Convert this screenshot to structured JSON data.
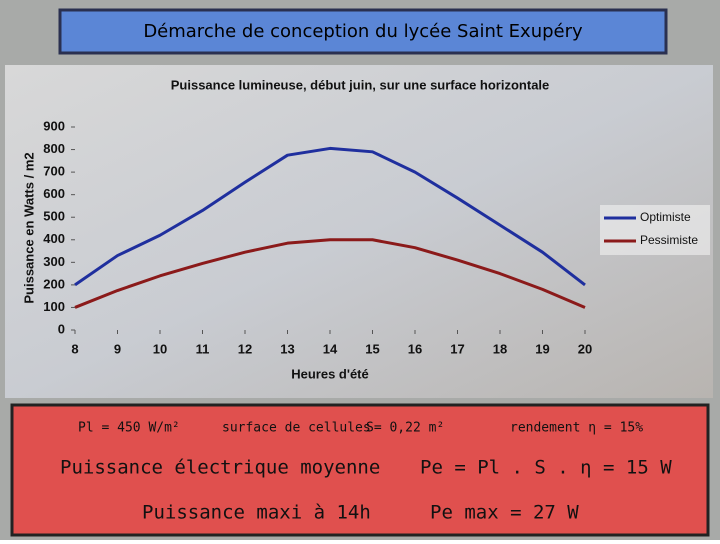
{
  "header": {
    "title": "Démarche de conception du lycée Saint Exupéry"
  },
  "chart_data": {
    "type": "line",
    "title": "Puissance lumineuse, début juin, sur une surface horizontale",
    "x_label": "Heures d'été",
    "y_label": "Puissance en Watts / m2",
    "x": [
      8,
      9,
      10,
      11,
      12,
      13,
      14,
      15,
      16,
      17,
      18,
      19,
      20
    ],
    "series": [
      {
        "name": "Optimiste",
        "color": "#1f2f9e",
        "values": [
          200,
          330,
          420,
          530,
          655,
          775,
          805,
          790,
          700,
          585,
          465,
          345,
          200
        ]
      },
      {
        "name": "Pessimiste",
        "color": "#8b1a1a",
        "values": [
          100,
          175,
          240,
          295,
          345,
          385,
          400,
          400,
          365,
          310,
          250,
          180,
          100
        ]
      }
    ],
    "xlim": [
      8,
      20
    ],
    "xticks": [
      8,
      9,
      10,
      11,
      12,
      13,
      14,
      15,
      16,
      17,
      18,
      19,
      20
    ],
    "ylim": [
      0,
      900
    ],
    "yticks": [
      0,
      100,
      200,
      300,
      400,
      500,
      600,
      700,
      800,
      900
    ],
    "legend": "right"
  },
  "notes": {
    "irradiance": "Pl = 450 W/m²",
    "surface_label": "surface de cellules",
    "surface": "S= 0,22 m²",
    "efficiency": "rendement η = 15%",
    "mean_label": "Puissance électrique moyenne",
    "mean_formula": "Pe = Pl . S . η  = 15 W",
    "max_label": "Puissance maxi à 14h",
    "max_value": "Pe max = 27 W"
  }
}
